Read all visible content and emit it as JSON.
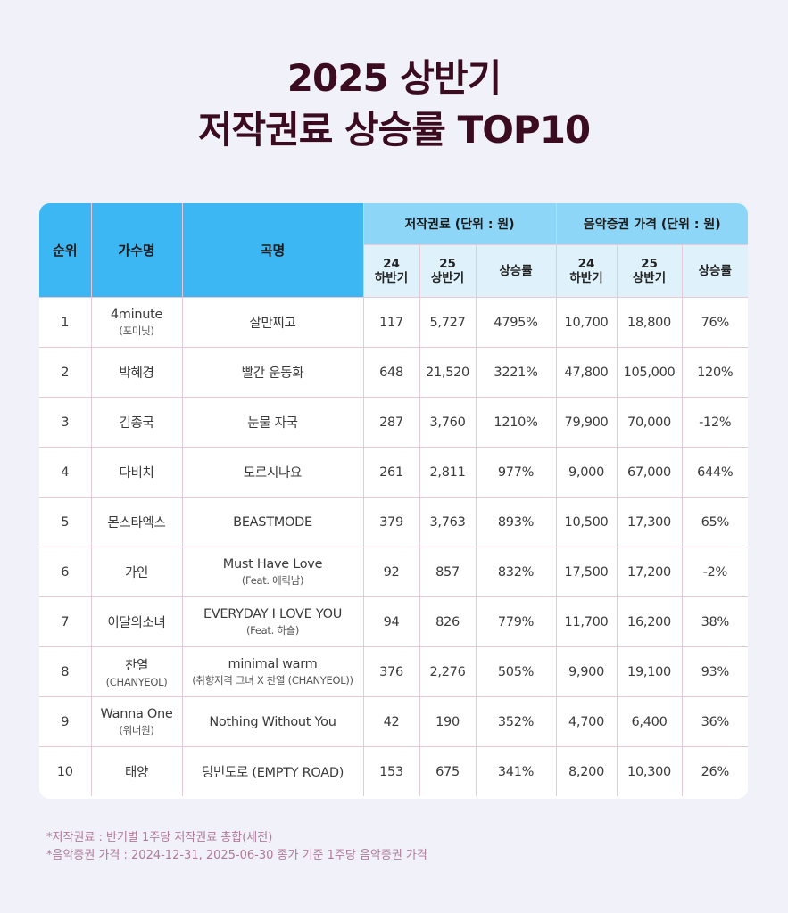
{
  "title": {
    "line1": "2025 상반기",
    "line2": "저작권료 상승률 TOP10"
  },
  "table": {
    "headers": {
      "rank": "순위",
      "artist": "가수명",
      "song": "곡명",
      "royalty_group": "저작권료 (단위 : 원)",
      "price_group": "음악증권 가격 (단위 : 원)",
      "royalty_h2_24": [
        "24",
        "하반기"
      ],
      "royalty_h1_25": [
        "25",
        "상반기"
      ],
      "royalty_rate": "상승률",
      "price_h2_24": [
        "24",
        "하반기"
      ],
      "price_h1_25": [
        "25",
        "상반기"
      ],
      "price_rate": "상승률"
    },
    "rows": [
      {
        "rank": "1",
        "artist": "4minute",
        "artist_sub": "(포미닛)",
        "song": "살만찌고",
        "song_sub": "",
        "r24": "117",
        "r25": "5,727",
        "r_rate": "4795%",
        "p24": "10,700",
        "p25": "18,800",
        "p_rate": "76%"
      },
      {
        "rank": "2",
        "artist": "박혜경",
        "artist_sub": "",
        "song": "빨간 운동화",
        "song_sub": "",
        "r24": "648",
        "r25": "21,520",
        "r_rate": "3221%",
        "p24": "47,800",
        "p25": "105,000",
        "p_rate": "120%"
      },
      {
        "rank": "3",
        "artist": "김종국",
        "artist_sub": "",
        "song": "눈물 자국",
        "song_sub": "",
        "r24": "287",
        "r25": "3,760",
        "r_rate": "1210%",
        "p24": "79,900",
        "p25": "70,000",
        "p_rate": "-12%"
      },
      {
        "rank": "4",
        "artist": "다비치",
        "artist_sub": "",
        "song": "모르시나요",
        "song_sub": "",
        "r24": "261",
        "r25": "2,811",
        "r_rate": "977%",
        "p24": "9,000",
        "p25": "67,000",
        "p_rate": "644%"
      },
      {
        "rank": "5",
        "artist": "몬스타엑스",
        "artist_sub": "",
        "song": "BEASTMODE",
        "song_sub": "",
        "r24": "379",
        "r25": "3,763",
        "r_rate": "893%",
        "p24": "10,500",
        "p25": "17,300",
        "p_rate": "65%"
      },
      {
        "rank": "6",
        "artist": "가인",
        "artist_sub": "",
        "song": "Must Have Love",
        "song_sub": "(Feat. 에릭남)",
        "r24": "92",
        "r25": "857",
        "r_rate": "832%",
        "p24": "17,500",
        "p25": "17,200",
        "p_rate": "-2%"
      },
      {
        "rank": "7",
        "artist": "이달의소녀",
        "artist_sub": "",
        "song": "EVERYDAY I LOVE YOU",
        "song_sub": "(Feat. 하슬)",
        "r24": "94",
        "r25": "826",
        "r_rate": "779%",
        "p24": "11,700",
        "p25": "16,200",
        "p_rate": "38%"
      },
      {
        "rank": "8",
        "artist": "찬열",
        "artist_sub": "(CHANYEOL)",
        "song": "minimal warm",
        "song_sub": "(취향저격 그녀 X 찬열 (CHANYEOL))",
        "r24": "376",
        "r25": "2,276",
        "r_rate": "505%",
        "p24": "9,900",
        "p25": "19,100",
        "p_rate": "93%"
      },
      {
        "rank": "9",
        "artist": "Wanna One",
        "artist_sub": "(워너원)",
        "song": "Nothing Without You",
        "song_sub": "",
        "r24": "42",
        "r25": "190",
        "r_rate": "352%",
        "p24": "4,700",
        "p25": "6,400",
        "p_rate": "36%"
      },
      {
        "rank": "10",
        "artist": "태양",
        "artist_sub": "",
        "song": "텅빈도로 (EMPTY ROAD)",
        "song_sub": "",
        "r24": "153",
        "r25": "675",
        "r_rate": "341%",
        "p24": "8,200",
        "p25": "10,300",
        "p_rate": "26%"
      }
    ]
  },
  "footnotes": [
    "*저작권료 : 반기별 1주당 저작권료 총합(세전)",
    "*음악증권 가격 : 2024-12-31, 2025-06-30 종가 기준 1주당 음악증권 가격"
  ],
  "colors": {
    "background": "#f1f1f9",
    "title": "#3b0b1f",
    "header_main": "#3db7f3",
    "header_group": "#8ed6f8",
    "header_sub": "#dff2fb",
    "grid_line": "#e6c9d6",
    "footnote": "#b07a98"
  }
}
